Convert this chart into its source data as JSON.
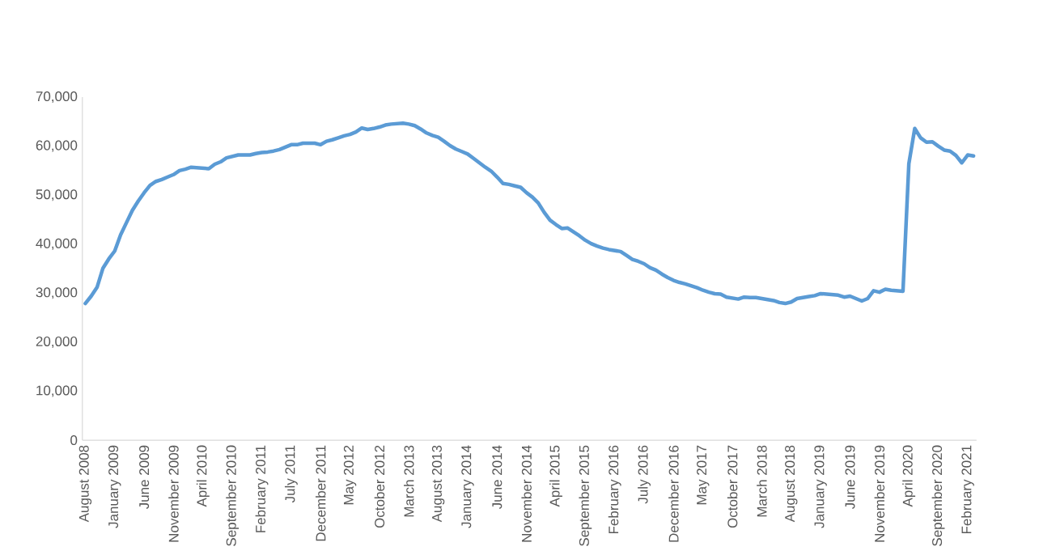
{
  "chart_data": {
    "type": "line",
    "categories": [
      "August 2008",
      null,
      null,
      null,
      null,
      "January 2009",
      null,
      null,
      null,
      null,
      "June 2009",
      null,
      null,
      null,
      null,
      "November 2009",
      null,
      null,
      null,
      null,
      "April 2010",
      null,
      null,
      null,
      null,
      "September 2010",
      null,
      null,
      null,
      null,
      "February 2011",
      null,
      null,
      null,
      null,
      "July 2011",
      null,
      null,
      null,
      null,
      "December 2011",
      null,
      null,
      null,
      null,
      "May 2012",
      null,
      null,
      null,
      null,
      "October 2012",
      null,
      null,
      null,
      null,
      "March 2013",
      null,
      null,
      null,
      null,
      "August 2013",
      null,
      null,
      null,
      null,
      "January 2014",
      null,
      null,
      null,
      null,
      "June 2014",
      null,
      null,
      null,
      null,
      "November 2014",
      null,
      null,
      null,
      null,
      "April 2015",
      null,
      null,
      null,
      null,
      "September 2015",
      null,
      null,
      null,
      null,
      "February 2016",
      null,
      null,
      null,
      null,
      "July 2016",
      null,
      null,
      null,
      null,
      "December 2016",
      null,
      null,
      null,
      null,
      "May 2017",
      null,
      null,
      null,
      null,
      "October 2017",
      null,
      null,
      null,
      null,
      "March 2018",
      null,
      null,
      null,
      null,
      "August 2018",
      null,
      null,
      null,
      null,
      "January 2019",
      null,
      null,
      null,
      null,
      "June 2019",
      null,
      null,
      null,
      null,
      "November 2019",
      null,
      null,
      null,
      null,
      "April 2020",
      null,
      null,
      null,
      null,
      "September 2020",
      null,
      null,
      null,
      null,
      "February 2021",
      null
    ],
    "values": [
      27900,
      29400,
      31200,
      35100,
      37000,
      38600,
      41900,
      44400,
      46900,
      48800,
      50500,
      52000,
      52800,
      53200,
      53700,
      54200,
      55000,
      55300,
      55700,
      55600,
      55500,
      55400,
      56300,
      56800,
      57600,
      57900,
      58200,
      58200,
      58200,
      58500,
      58700,
      58800,
      59000,
      59300,
      59800,
      60300,
      60300,
      60600,
      60600,
      60600,
      60300,
      61000,
      61300,
      61700,
      62100,
      62400,
      62900,
      63700,
      63400,
      63600,
      63900,
      64300,
      64500,
      64600,
      64700,
      64500,
      64200,
      63500,
      62700,
      62200,
      61800,
      61000,
      60100,
      59400,
      58900,
      58400,
      57500,
      56600,
      55700,
      54900,
      53700,
      52400,
      52200,
      51900,
      51600,
      50500,
      49600,
      48400,
      46500,
      44900,
      44000,
      43200,
      43300,
      42500,
      41700,
      40800,
      40100,
      39600,
      39200,
      38900,
      38700,
      38500,
      37700,
      36900,
      36500,
      36000,
      35200,
      34700,
      33900,
      33200,
      32600,
      32200,
      31900,
      31500,
      31100,
      30600,
      30200,
      29900,
      29800,
      29200,
      29000,
      28800,
      29200,
      29100,
      29100,
      28900,
      28700,
      28500,
      28100,
      27900,
      28200,
      28900,
      29100,
      29300,
      29500,
      29900,
      29800,
      29700,
      29600,
      29200,
      29400,
      28900,
      28400,
      28900,
      30500,
      30200,
      30800,
      30600,
      30500,
      30400,
      56400,
      63600,
      61700,
      60800,
      60900,
      60000,
      59200,
      59000,
      58100,
      56600,
      58200,
      58000
    ],
    "color": "#5b9bd5",
    "ylim": [
      0,
      70000
    ],
    "yticks": [
      0,
      {
        "value": 10000,
        "label": "10,000"
      },
      {
        "value": 20000,
        "label": "20,000"
      },
      {
        "value": 30000,
        "label": "30,000"
      },
      {
        "value": 40000,
        "label": "40,000"
      },
      {
        "value": 50000,
        "label": "50,000"
      },
      {
        "value": 60000,
        "label": "60,000"
      },
      {
        "value": 70000,
        "label": "70,000"
      }
    ],
    "marker": "none",
    "line_style": "solid"
  }
}
